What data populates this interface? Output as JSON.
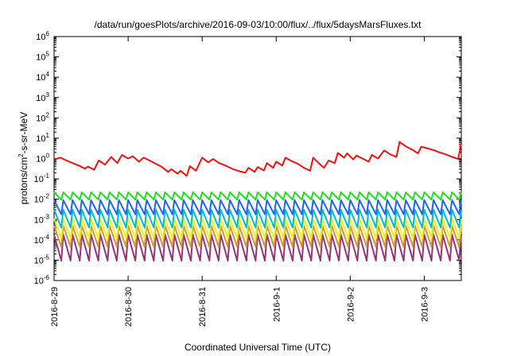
{
  "chart_data": {
    "type": "line",
    "title": "/data/run/goesPlots/archive/2016-09-03/10:00/flux/../flux/5daysMarsFluxes.txt",
    "xlabel": "Coordinated Universal Time (UTC)",
    "ylabel_parts": {
      "pre": "protons/cm",
      "sup": "2",
      "post": "-s-sr-MeV"
    },
    "yscale": "log",
    "ylim": [
      1e-06,
      1000000.0
    ],
    "y_ticks": [
      {
        "base": "10",
        "exp": "-6"
      },
      {
        "base": "10",
        "exp": "-5"
      },
      {
        "base": "10",
        "exp": "-4"
      },
      {
        "base": "10",
        "exp": "-3"
      },
      {
        "base": "10",
        "exp": "-2"
      },
      {
        "base": "10",
        "exp": "-1"
      },
      {
        "base": "10",
        "exp": "0"
      },
      {
        "base": "10",
        "exp": "1"
      },
      {
        "base": "10",
        "exp": "2"
      },
      {
        "base": "10",
        "exp": "3"
      },
      {
        "base": "10",
        "exp": "4"
      },
      {
        "base": "10",
        "exp": "5"
      },
      {
        "base": "10",
        "exp": "6"
      }
    ],
    "x_ticks": [
      "2016-8-29",
      "2016-8-30",
      "2016-8-31",
      "2016-9-1",
      "2016-9-2",
      "2016-9-3"
    ],
    "xlim": [
      "2016-08-29 00:00",
      "2016-09-03 12:00"
    ],
    "grid": false,
    "legend": "none",
    "series": [
      {
        "color": "#ee1111",
        "style": "irregular",
        "values": [
          [
            "2016-08-29 00:00",
            0.9
          ],
          [
            "2016-08-29 02:00",
            1.1
          ],
          [
            "2016-08-29 04:00",
            0.8
          ],
          [
            "2016-08-29 06:00",
            0.6
          ],
          [
            "2016-08-29 08:00",
            0.45
          ],
          [
            "2016-08-29 10:00",
            0.32
          ],
          [
            "2016-08-29 11:00",
            0.4
          ],
          [
            "2016-08-29 13:00",
            0.28
          ],
          [
            "2016-08-29 14:30",
            0.8
          ],
          [
            "2016-08-29 16:30",
            0.5
          ],
          [
            "2016-08-29 18:30",
            1.2
          ],
          [
            "2016-08-29 20:30",
            0.6
          ],
          [
            "2016-08-29 22:00",
            1.5
          ],
          [
            "2016-08-30 00:00",
            1.0
          ],
          [
            "2016-08-30 01:30",
            1.3
          ],
          [
            "2016-08-30 03:30",
            0.7
          ],
          [
            "2016-08-30 05:00",
            1.1
          ],
          [
            "2016-08-30 07:00",
            0.8
          ],
          [
            "2016-08-30 09:00",
            0.55
          ],
          [
            "2016-08-30 11:00",
            0.38
          ],
          [
            "2016-08-30 13:00",
            0.22
          ],
          [
            "2016-08-30 14:00",
            0.3
          ],
          [
            "2016-08-30 16:00",
            0.18
          ],
          [
            "2016-08-30 17:00",
            0.25
          ],
          [
            "2016-08-30 19:00",
            0.14
          ],
          [
            "2016-08-30 20:00",
            0.42
          ],
          [
            "2016-08-30 22:00",
            0.25
          ],
          [
            "2016-08-31 00:00",
            1.1
          ],
          [
            "2016-08-31 02:00",
            0.65
          ],
          [
            "2016-08-31 03:30",
            0.95
          ],
          [
            "2016-08-31 05:30",
            0.6
          ],
          [
            "2016-08-31 08:00",
            0.42
          ],
          [
            "2016-08-31 10:00",
            0.3
          ],
          [
            "2016-08-31 12:00",
            0.24
          ],
          [
            "2016-08-31 14:00",
            0.2
          ],
          [
            "2016-08-31 15:00",
            0.35
          ],
          [
            "2016-08-31 17:00",
            0.22
          ],
          [
            "2016-08-31 18:00",
            0.38
          ],
          [
            "2016-08-31 20:00",
            0.26
          ],
          [
            "2016-08-31 21:00",
            0.6
          ],
          [
            "2016-08-31 23:00",
            0.35
          ],
          [
            "2016-09-01 00:00",
            0.7
          ],
          [
            "2016-09-01 02:00",
            0.45
          ],
          [
            "2016-09-01 03:00",
            1.1
          ],
          [
            "2016-09-01 05:00",
            0.75
          ],
          [
            "2016-09-01 07:00",
            0.55
          ],
          [
            "2016-09-01 09:00",
            0.35
          ],
          [
            "2016-09-01 11:00",
            0.25
          ],
          [
            "2016-09-01 12:00",
            1.1
          ],
          [
            "2016-09-01 14:00",
            0.55
          ],
          [
            "2016-09-01 15:30",
            0.35
          ],
          [
            "2016-09-01 17:00",
            0.8
          ],
          [
            "2016-09-01 19:00",
            0.6
          ],
          [
            "2016-09-01 20:00",
            1.9
          ],
          [
            "2016-09-01 22:00",
            1.1
          ],
          [
            "2016-09-01 23:00",
            1.8
          ],
          [
            "2016-09-02 01:00",
            0.9
          ],
          [
            "2016-09-02 02:00",
            1.4
          ],
          [
            "2016-09-02 04:00",
            1.0
          ],
          [
            "2016-09-02 06:00",
            0.7
          ],
          [
            "2016-09-02 07:00",
            1.5
          ],
          [
            "2016-09-02 09:00",
            1.0
          ],
          [
            "2016-09-02 11:00",
            2.5
          ],
          [
            "2016-09-02 13:00",
            1.6
          ],
          [
            "2016-09-02 15:00",
            1.2
          ],
          [
            "2016-09-02 16:00",
            6.5
          ],
          [
            "2016-09-02 18:00",
            4.0
          ],
          [
            "2016-09-02 20:00",
            2.8
          ],
          [
            "2016-09-02 22:00",
            1.8
          ],
          [
            "2016-09-02 23:00",
            3.8
          ],
          [
            "2016-09-03 01:00",
            3.2
          ],
          [
            "2016-09-03 03:00",
            2.6
          ],
          [
            "2016-09-03 05:00",
            2.0
          ],
          [
            "2016-09-03 07:00",
            1.6
          ],
          [
            "2016-09-03 09:00",
            1.2
          ],
          [
            "2016-09-03 11:00",
            0.95
          ],
          [
            "2016-09-03 12:00",
            5.5
          ]
        ]
      },
      {
        "color": "#22dd22",
        "style": "sawtooth",
        "period_hours": 3,
        "start": "2016-08-29 00:00",
        "end": "2016-09-03 12:00",
        "peak": 0.022,
        "trough": 0.0095
      },
      {
        "color": "#1f66ee",
        "style": "sawtooth",
        "period_hours": 3,
        "start": "2016-08-29 00:00",
        "end": "2016-09-03 12:00",
        "peak": 0.009,
        "trough": 0.0018
      },
      {
        "color": "#00bbcc",
        "style": "sawtooth",
        "period_hours": 3,
        "start": "2016-08-29 00:00",
        "end": "2016-09-03 12:00",
        "peak": 0.003,
        "trough": 0.0004
      },
      {
        "color": "#eeee22",
        "style": "sawtooth",
        "period_hours": 3,
        "start": "2016-08-29 00:00",
        "end": "2016-09-03 12:00",
        "peak": 0.0011,
        "trough": 0.00012
      },
      {
        "color": "#cc9933",
        "style": "sawtooth",
        "period_hours": 3,
        "start": "2016-08-29 00:00",
        "end": "2016-09-03 12:00",
        "peak": 0.0005,
        "trough": 4.5e-05
      },
      {
        "color": "#993377",
        "style": "sawtooth",
        "period_hours": 3,
        "start": "2016-08-29 00:00",
        "end": "2016-09-03 12:00",
        "peak": 0.00018,
        "trough": 9.5e-06
      }
    ]
  }
}
